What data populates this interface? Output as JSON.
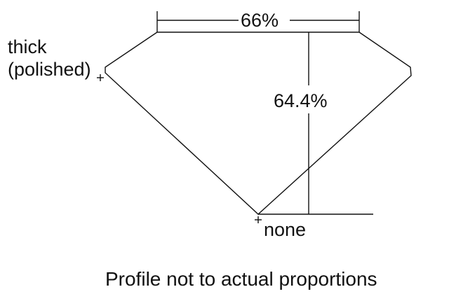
{
  "labels": {
    "table_width": "66%",
    "total_depth": "64.4%",
    "girdle_line1": "thick",
    "girdle_line2": "(polished)",
    "culet": "none",
    "caption": "Profile not to actual proportions"
  },
  "colors": {
    "line": "#111111",
    "background": "#ffffff"
  }
}
